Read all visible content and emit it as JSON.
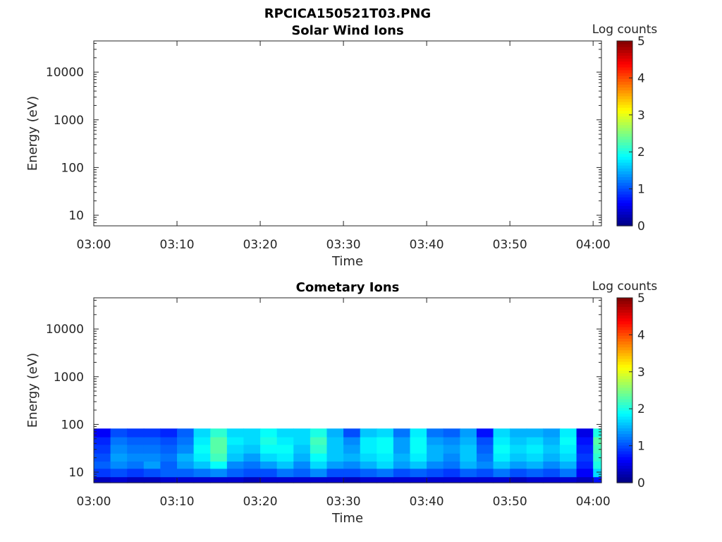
{
  "figure_title": "RPCICA150521T03.PNG",
  "chart_data": [
    {
      "type": "heatmap",
      "title": "Solar Wind Ions",
      "xlabel": "Time",
      "ylabel": "Energy (eV)",
      "xlim": [
        "03:00",
        "04:01"
      ],
      "ylim": [
        6,
        45000
      ],
      "y_scale": "log",
      "x_ticks": [
        "03:00",
        "03:10",
        "03:20",
        "03:30",
        "03:40",
        "03:50",
        "04:00"
      ],
      "y_ticks": [
        10,
        100,
        1000,
        10000
      ],
      "y_tick_labels": [
        "10",
        "100",
        "1000",
        "10000"
      ],
      "colorbar": {
        "label": "Log counts",
        "range": [
          0,
          5
        ],
        "ticks": [
          "0",
          "1",
          "2",
          "3",
          "4",
          "5"
        ],
        "colormap": "jet"
      },
      "energy_bands": [],
      "time_bins": [],
      "log_counts": []
    },
    {
      "type": "heatmap",
      "title": "Cometary Ions",
      "xlabel": "Time",
      "ylabel": "Energy (eV)",
      "xlim": [
        "03:00",
        "04:01"
      ],
      "ylim": [
        6,
        45000
      ],
      "y_scale": "log",
      "x_ticks": [
        "03:00",
        "03:10",
        "03:20",
        "03:30",
        "03:40",
        "03:50",
        "04:00"
      ],
      "y_ticks": [
        10,
        100,
        1000,
        10000
      ],
      "y_tick_labels": [
        "10",
        "100",
        "1000",
        "10000"
      ],
      "colorbar": {
        "label": "Log counts",
        "range": [
          0,
          5
        ],
        "ticks": [
          "0",
          "1",
          "2",
          "3",
          "4",
          "5"
        ],
        "colormap": "jet"
      },
      "energy_bands": [
        {
          "low": 6,
          "high": 8
        },
        {
          "low": 8,
          "high": 12
        },
        {
          "low": 12,
          "high": 17
        },
        {
          "low": 17,
          "high": 25
        },
        {
          "low": 25,
          "high": 38
        },
        {
          "low": 38,
          "high": 55
        },
        {
          "low": 55,
          "high": 82
        }
      ],
      "time_bins": [
        "03:00",
        "03:02",
        "03:04",
        "03:06",
        "03:08",
        "03:10",
        "03:12",
        "03:14",
        "03:16",
        "03:18",
        "03:20",
        "03:22",
        "03:24",
        "03:26",
        "03:28",
        "03:30",
        "03:32",
        "03:34",
        "03:36",
        "03:38",
        "03:40",
        "03:42",
        "03:44",
        "03:46",
        "03:48",
        "03:50",
        "03:52",
        "03:54",
        "03:56",
        "03:58",
        "04:00"
      ],
      "log_counts": [
        [
          0.3,
          0.4,
          0.3,
          0.3,
          0.4,
          0.4,
          0.4,
          0.4,
          0.4,
          0.3,
          0.4,
          0.4,
          0.4,
          0.4,
          0.4,
          0.3,
          0.4,
          0.4,
          0.4,
          0.4,
          0.4,
          0.4,
          0.4,
          0.4,
          0.4,
          0.3,
          0.4,
          0.4,
          0.4,
          0.3,
          0.7
        ],
        [
          0.9,
          1.0,
          0.9,
          1.0,
          1.1,
          1.1,
          1.2,
          1.3,
          1.1,
          1.0,
          1.0,
          1.2,
          1.1,
          1.3,
          1.0,
          1.0,
          1.1,
          1.2,
          1.0,
          1.1,
          1.0,
          0.9,
          1.1,
          1.0,
          1.2,
          1.0,
          1.1,
          1.0,
          1.2,
          0.6,
          1.7
        ],
        [
          1.1,
          1.3,
          1.2,
          1.4,
          1.1,
          1.4,
          1.6,
          1.9,
          1.3,
          1.2,
          1.4,
          1.6,
          1.3,
          1.7,
          1.4,
          1.3,
          1.5,
          1.7,
          1.4,
          1.6,
          1.3,
          1.2,
          1.5,
          1.3,
          1.6,
          1.4,
          1.5,
          1.3,
          1.5,
          0.8,
          2.0
        ],
        [
          1.0,
          1.4,
          1.3,
          1.3,
          1.2,
          1.5,
          1.8,
          2.2,
          1.6,
          1.4,
          1.7,
          1.8,
          1.5,
          1.9,
          1.6,
          1.5,
          1.7,
          1.8,
          1.5,
          1.8,
          1.5,
          1.3,
          1.6,
          1.2,
          1.8,
          1.6,
          1.7,
          1.5,
          1.7,
          0.9,
          2.1
        ],
        [
          0.9,
          1.3,
          1.2,
          1.2,
          1.1,
          1.3,
          1.9,
          2.3,
          1.7,
          1.6,
          1.9,
          1.9,
          1.6,
          2.1,
          1.6,
          1.4,
          1.8,
          1.9,
          1.4,
          1.9,
          1.5,
          1.4,
          1.6,
          1.1,
          1.9,
          1.7,
          1.8,
          1.6,
          1.8,
          0.8,
          2.2
        ],
        [
          0.8,
          1.2,
          1.1,
          1.1,
          1.0,
          1.2,
          1.8,
          2.3,
          1.8,
          1.7,
          2.0,
          1.8,
          1.7,
          2.2,
          1.6,
          1.3,
          1.8,
          1.9,
          1.4,
          1.9,
          1.4,
          1.3,
          1.5,
          1.0,
          1.8,
          1.6,
          1.7,
          1.5,
          1.9,
          0.7,
          2.3
        ],
        [
          0.6,
          1.0,
          0.9,
          0.9,
          0.8,
          1.1,
          1.7,
          2.1,
          1.7,
          1.7,
          1.9,
          1.7,
          1.7,
          2.0,
          1.5,
          1.0,
          1.6,
          1.7,
          1.2,
          1.8,
          1.2,
          1.1,
          1.4,
          0.7,
          1.7,
          1.5,
          1.5,
          1.4,
          1.8,
          0.5,
          2.0
        ]
      ]
    }
  ]
}
